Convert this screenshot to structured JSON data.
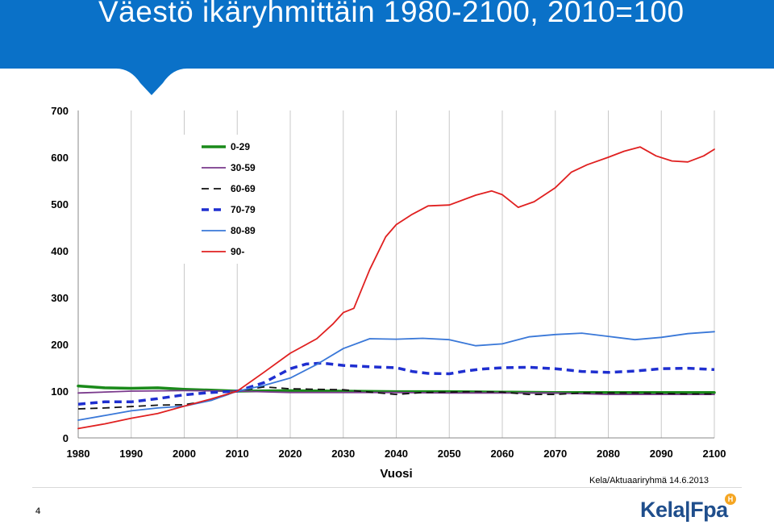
{
  "header": {
    "title": "Väestö ikäryhmittäin 1980-2100, 2010=100"
  },
  "chart_data": {
    "type": "line",
    "title": "",
    "xlabel": "Vuosi",
    "ylabel": "",
    "xlim": [
      1980,
      2100
    ],
    "ylim": [
      0,
      700
    ],
    "x_ticks": [
      "1980",
      "1990",
      "2000",
      "2010",
      "2020",
      "2030",
      "2040",
      "2050",
      "2060",
      "2070",
      "2080",
      "2090",
      "2100"
    ],
    "y_ticks": [
      "0",
      "100",
      "200",
      "300",
      "400",
      "500",
      "600",
      "700"
    ],
    "grid": "vertical",
    "legend_position": "top-left",
    "series": [
      {
        "name": "0-29",
        "color": "#1a8a1a",
        "style": "solid-thick",
        "x": [
          1980,
          1985,
          1990,
          1995,
          2000,
          2005,
          2010,
          2020,
          2030,
          2040,
          2050,
          2060,
          2070,
          2080,
          2090,
          2100
        ],
        "y": [
          111,
          107,
          106,
          107,
          104,
          102,
          100,
          101,
          100,
          99,
          99,
          98,
          97,
          97,
          97,
          97
        ]
      },
      {
        "name": "30-59",
        "color": "#7a3a8c",
        "style": "solid",
        "x": [
          1980,
          1990,
          2000,
          2010,
          2020,
          2030,
          2040,
          2050,
          2060,
          2070,
          2080,
          2090,
          2100
        ],
        "y": [
          96,
          100,
          101,
          100,
          97,
          97,
          97,
          96,
          96,
          96,
          93,
          93,
          93
        ]
      },
      {
        "name": "60-69",
        "color": "#111111",
        "style": "dashed",
        "x": [
          1980,
          1985,
          1990,
          1995,
          2000,
          2005,
          2010,
          2015,
          2020,
          2025,
          2030,
          2035,
          2040,
          2045,
          2050,
          2055,
          2060,
          2065,
          2070,
          2075,
          2080,
          2085,
          2090,
          2095,
          2100
        ],
        "y": [
          62,
          64,
          67,
          70,
          71,
          80,
          100,
          109,
          105,
          104,
          103,
          98,
          93,
          97,
          98,
          99,
          98,
          93,
          93,
          96,
          96,
          96,
          95,
          94,
          94
        ]
      },
      {
        "name": "70-79",
        "color": "#1f2fd0",
        "style": "dashed-thick",
        "x": [
          1980,
          1985,
          1990,
          1995,
          2000,
          2005,
          2010,
          2015,
          2020,
          2023,
          2026,
          2030,
          2035,
          2040,
          2043,
          2046,
          2050,
          2053,
          2056,
          2060,
          2065,
          2070,
          2075,
          2080,
          2085,
          2090,
          2095,
          2100
        ],
        "y": [
          72,
          77,
          77,
          84,
          92,
          97,
          100,
          118,
          148,
          158,
          160,
          155,
          152,
          150,
          142,
          138,
          137,
          143,
          147,
          150,
          151,
          148,
          142,
          140,
          143,
          148,
          149,
          146
        ]
      },
      {
        "name": "80-89",
        "color": "#3a78d8",
        "style": "solid",
        "x": [
          1980,
          1985,
          1990,
          1995,
          2000,
          2005,
          2010,
          2015,
          2020,
          2025,
          2030,
          2035,
          2040,
          2045,
          2050,
          2055,
          2060,
          2065,
          2070,
          2075,
          2080,
          2085,
          2090,
          2095,
          2100
        ],
        "y": [
          38,
          48,
          58,
          64,
          68,
          80,
          100,
          112,
          128,
          157,
          191,
          212,
          211,
          213,
          210,
          197,
          201,
          216,
          221,
          224,
          217,
          210,
          215,
          223,
          227
        ]
      },
      {
        "name": "90-",
        "color": "#e02020",
        "style": "solid",
        "x": [
          1980,
          1985,
          1990,
          1995,
          2000,
          2005,
          2010,
          2015,
          2020,
          2025,
          2028,
          2030,
          2032,
          2035,
          2038,
          2040,
          2043,
          2046,
          2050,
          2055,
          2058,
          2060,
          2063,
          2066,
          2070,
          2073,
          2076,
          2080,
          2083,
          2086,
          2089,
          2092,
          2095,
          2098,
          2100
        ],
        "y": [
          20,
          30,
          42,
          52,
          68,
          83,
          100,
          140,
          181,
          212,
          243,
          268,
          277,
          360,
          430,
          456,
          478,
          496,
          498,
          519,
          528,
          520,
          493,
          505,
          535,
          568,
          584,
          600,
          613,
          622,
          603,
          592,
          590,
          603,
          617
        ]
      }
    ]
  },
  "footer": {
    "source": "Kela/Aktuaariryhmä 14.6.2013",
    "page_number": "4",
    "logo_text": "Kela|Fpa",
    "logo_badge": "H"
  }
}
